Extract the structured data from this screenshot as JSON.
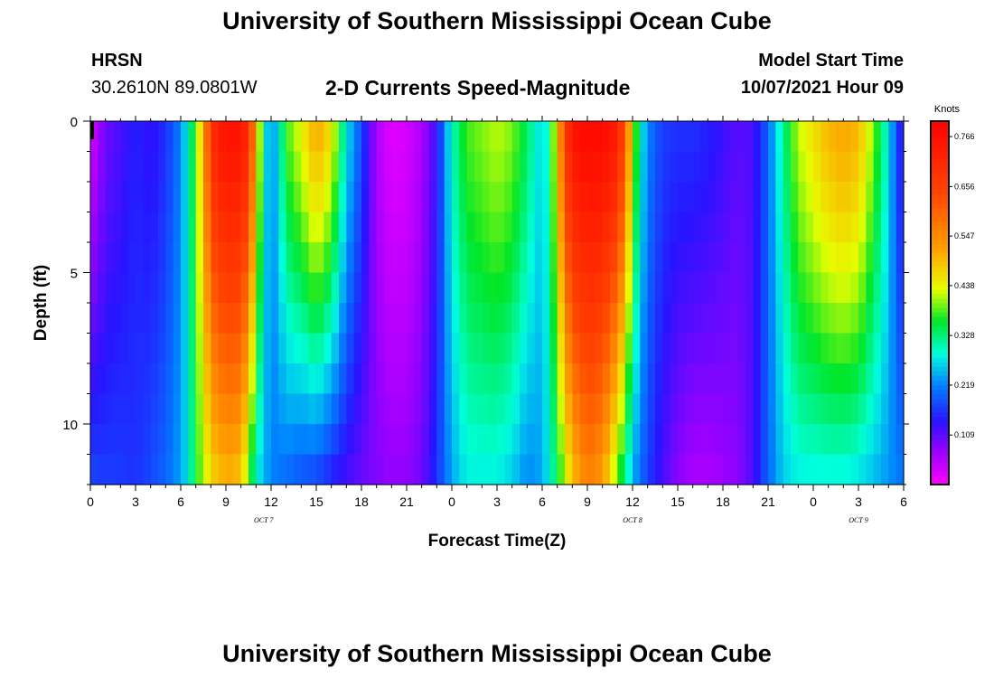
{
  "header": {
    "title": "University of Southern Mississippi Ocean Cube",
    "station": "HRSN",
    "coordinates": "30.2610N  89.0801W",
    "subtitle": "2-D Currents Speed-Magnitude",
    "model_label": "Model Start Time",
    "model_time": "10/07/2021 Hour 09"
  },
  "footer": {
    "title": "University of Southern Mississippi Ocean Cube"
  },
  "chart_data": {
    "type": "heatmap",
    "title": "2-D Currents Speed-Magnitude",
    "xlabel": "Forecast Time(Z)",
    "ylabel": "Depth (ft)",
    "x_range_hours": [
      0,
      54
    ],
    "y_range_ft": [
      0,
      12
    ],
    "y_inverted": true,
    "x_tick_labels": [
      "0",
      "3",
      "6",
      "9",
      "12",
      "15",
      "18",
      "21",
      "0",
      "3",
      "6",
      "9",
      "12",
      "15",
      "18",
      "21",
      "0",
      "3",
      "6"
    ],
    "y_tick_labels": [
      "0",
      "5",
      "10"
    ],
    "y_tick_values": [
      0,
      5,
      10
    ],
    "date_labels": [
      {
        "text": "OCT 7",
        "hour": 11.5
      },
      {
        "text": "OCT 8",
        "hour": 36
      },
      {
        "text": "OCT 9",
        "hour": 51
      }
    ],
    "colorbar": {
      "title": "Knots",
      "min": 0,
      "max": 0.8,
      "tick_labels": [
        "0.766",
        "0.656",
        "0.547",
        "0.438",
        "0.328",
        "0.219",
        "0.109"
      ],
      "tick_values": [
        0.766,
        0.656,
        0.547,
        0.438,
        0.328,
        0.219,
        0.109
      ]
    },
    "speed_by_hour_surface_knots": [
      [
        0,
        0.03
      ],
      [
        0.5,
        0.06
      ],
      [
        1,
        0.1
      ],
      [
        2,
        0.12
      ],
      [
        3,
        0.15
      ],
      [
        4,
        0.13
      ],
      [
        5,
        0.16
      ],
      [
        6,
        0.22
      ],
      [
        6.5,
        0.3
      ],
      [
        7,
        0.38
      ],
      [
        7.5,
        0.52
      ],
      [
        8,
        0.68
      ],
      [
        8.5,
        0.74
      ],
      [
        9,
        0.76
      ],
      [
        10,
        0.76
      ],
      [
        10.5,
        0.7
      ],
      [
        11,
        0.52
      ],
      [
        11.5,
        0.3
      ],
      [
        12,
        0.22
      ],
      [
        12.5,
        0.28
      ],
      [
        13,
        0.38
      ],
      [
        14,
        0.44
      ],
      [
        15,
        0.52
      ],
      [
        16,
        0.46
      ],
      [
        17,
        0.28
      ],
      [
        18,
        0.18
      ],
      [
        19,
        0.06
      ],
      [
        20,
        0.02
      ],
      [
        21,
        0.03
      ],
      [
        22,
        0.06
      ],
      [
        23,
        0.13
      ],
      [
        23.5,
        0.22
      ],
      [
        24,
        0.3
      ],
      [
        25,
        0.38
      ],
      [
        26,
        0.4
      ],
      [
        27,
        0.42
      ],
      [
        28,
        0.4
      ],
      [
        29,
        0.34
      ],
      [
        30,
        0.26
      ],
      [
        30.5,
        0.32
      ],
      [
        31,
        0.48
      ],
      [
        31.5,
        0.66
      ],
      [
        32,
        0.76
      ],
      [
        33,
        0.78
      ],
      [
        34,
        0.78
      ],
      [
        35,
        0.74
      ],
      [
        35.5,
        0.62
      ],
      [
        36,
        0.44
      ],
      [
        36.5,
        0.3
      ],
      [
        37,
        0.22
      ],
      [
        38,
        0.17
      ],
      [
        39,
        0.16
      ],
      [
        40,
        0.16
      ],
      [
        41,
        0.15
      ],
      [
        42,
        0.13
      ],
      [
        43,
        0.11
      ],
      [
        44,
        0.12
      ],
      [
        45,
        0.2
      ],
      [
        46,
        0.32
      ],
      [
        47,
        0.42
      ],
      [
        48,
        0.46
      ],
      [
        49,
        0.5
      ],
      [
        50,
        0.52
      ],
      [
        51,
        0.5
      ],
      [
        52,
        0.4
      ],
      [
        53,
        0.28
      ],
      [
        53.5,
        0.18
      ],
      [
        54,
        0.12
      ]
    ],
    "speed_by_hour_bottom_knots": [
      [
        0,
        0.18
      ],
      [
        1,
        0.17
      ],
      [
        2,
        0.17
      ],
      [
        3,
        0.16
      ],
      [
        4,
        0.18
      ],
      [
        5,
        0.2
      ],
      [
        6,
        0.24
      ],
      [
        6.5,
        0.28
      ],
      [
        7,
        0.36
      ],
      [
        8,
        0.46
      ],
      [
        9,
        0.5
      ],
      [
        10,
        0.48
      ],
      [
        10.5,
        0.38
      ],
      [
        11,
        0.28
      ],
      [
        12,
        0.22
      ],
      [
        13,
        0.2
      ],
      [
        14,
        0.18
      ],
      [
        15,
        0.17
      ],
      [
        16,
        0.14
      ],
      [
        17,
        0.12
      ],
      [
        18,
        0.1
      ],
      [
        19,
        0.09
      ],
      [
        20,
        0.08
      ],
      [
        21,
        0.08
      ],
      [
        22,
        0.1
      ],
      [
        23,
        0.16
      ],
      [
        24,
        0.24
      ],
      [
        25,
        0.28
      ],
      [
        26,
        0.28
      ],
      [
        27,
        0.28
      ],
      [
        28,
        0.26
      ],
      [
        29,
        0.22
      ],
      [
        30,
        0.24
      ],
      [
        31,
        0.34
      ],
      [
        32,
        0.48
      ],
      [
        33,
        0.56
      ],
      [
        34,
        0.52
      ],
      [
        35,
        0.38
      ],
      [
        36,
        0.24
      ],
      [
        37,
        0.17
      ],
      [
        38,
        0.12
      ],
      [
        39,
        0.08
      ],
      [
        40,
        0.06
      ],
      [
        41,
        0.06
      ],
      [
        42,
        0.07
      ],
      [
        43,
        0.08
      ],
      [
        44,
        0.12
      ],
      [
        45,
        0.2
      ],
      [
        46,
        0.26
      ],
      [
        47,
        0.28
      ],
      [
        48,
        0.28
      ],
      [
        49,
        0.28
      ],
      [
        50,
        0.28
      ],
      [
        51,
        0.27
      ],
      [
        52,
        0.25
      ],
      [
        53,
        0.23
      ],
      [
        54,
        0.21
      ]
    ]
  }
}
